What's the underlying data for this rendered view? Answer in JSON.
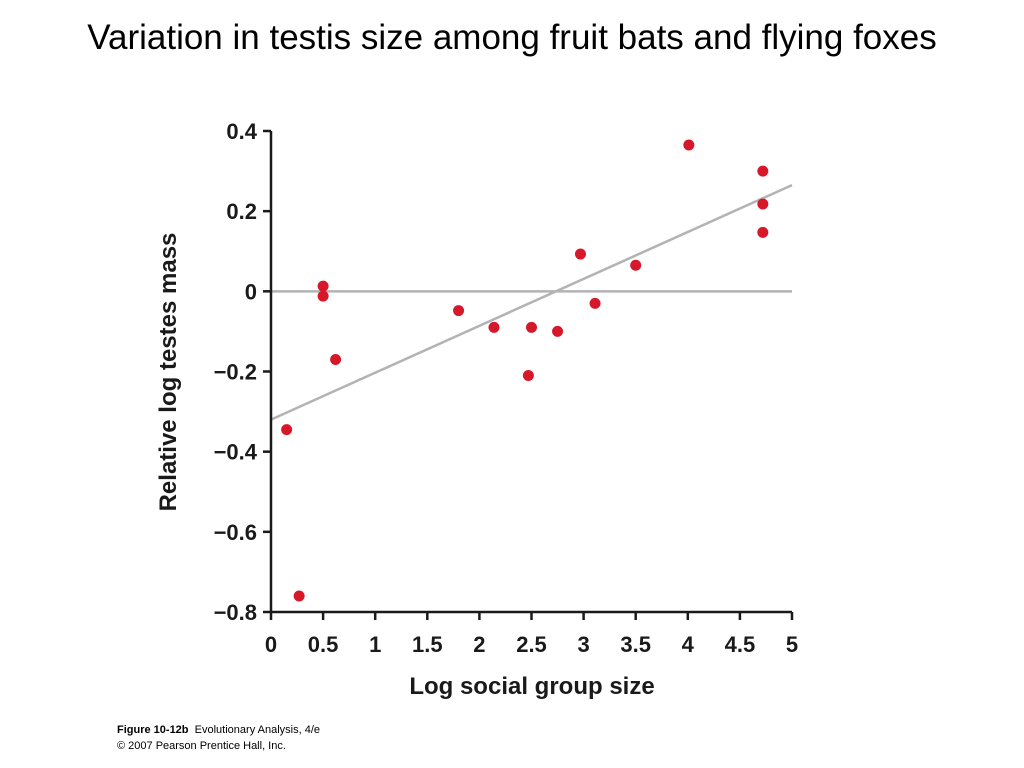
{
  "slide": {
    "title": "Variation in testis size among fruit bats and flying foxes"
  },
  "caption": {
    "figure_id": "Figure 10-12b",
    "book": "Evolutionary Analysis, 4/e",
    "copyright": "© 2007 Pearson Prentice Hall, Inc."
  },
  "chart_data": {
    "type": "scatter",
    "title": "Variation in testis size among fruit bats and flying foxes",
    "xlabel": "Log social group size",
    "ylabel": "Relative log testes mass",
    "xlim": [
      0,
      5
    ],
    "ylim": [
      -0.8,
      0.4
    ],
    "x_ticks": [
      {
        "value": 0,
        "label": "0"
      },
      {
        "value": 0.5,
        "label": "0.5"
      },
      {
        "value": 1,
        "label": "1"
      },
      {
        "value": 1.5,
        "label": "1.5"
      },
      {
        "value": 2,
        "label": "2"
      },
      {
        "value": 2.5,
        "label": "2.5"
      },
      {
        "value": 3,
        "label": "3"
      },
      {
        "value": 3.5,
        "label": "3.5"
      },
      {
        "value": 4,
        "label": "4"
      },
      {
        "value": 4.5,
        "label": "4.5"
      },
      {
        "value": 5,
        "label": "5"
      }
    ],
    "y_ticks": [
      {
        "value": 0.4,
        "label": "0.4"
      },
      {
        "value": 0.2,
        "label": "0.2"
      },
      {
        "value": 0,
        "label": "0"
      },
      {
        "value": -0.2,
        "label": "−0.2"
      },
      {
        "value": -0.4,
        "label": "−0.4"
      },
      {
        "value": -0.6,
        "label": "−0.6"
      },
      {
        "value": -0.8,
        "label": "−0.8"
      }
    ],
    "grid": false,
    "point_color": "#d7182a",
    "line_color": "#b3b3b3",
    "points": [
      {
        "x": 0.15,
        "y": -0.345
      },
      {
        "x": 0.27,
        "y": -0.76
      },
      {
        "x": 0.5,
        "y": 0.013
      },
      {
        "x": 0.5,
        "y": -0.012
      },
      {
        "x": 0.62,
        "y": -0.17
      },
      {
        "x": 1.8,
        "y": -0.048
      },
      {
        "x": 2.14,
        "y": -0.09
      },
      {
        "x": 2.47,
        "y": -0.21
      },
      {
        "x": 2.5,
        "y": -0.09
      },
      {
        "x": 2.75,
        "y": -0.1
      },
      {
        "x": 2.97,
        "y": 0.093
      },
      {
        "x": 3.11,
        "y": -0.03
      },
      {
        "x": 3.5,
        "y": 0.065
      },
      {
        "x": 4.01,
        "y": 0.365
      },
      {
        "x": 4.72,
        "y": 0.3
      },
      {
        "x": 4.72,
        "y": 0.218
      },
      {
        "x": 4.72,
        "y": 0.147
      }
    ],
    "zero_line": {
      "y": 0
    },
    "regression_line": {
      "x": [
        0,
        5
      ],
      "y": [
        -0.32,
        0.265
      ]
    }
  }
}
